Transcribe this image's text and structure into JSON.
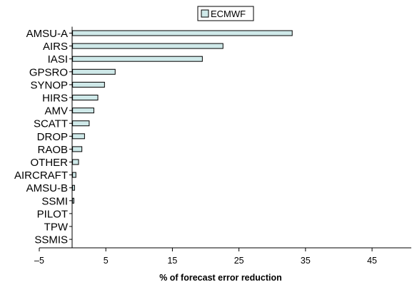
{
  "chart_data": {
    "type": "bar",
    "orientation": "horizontal",
    "categories": [
      "AMSU-A",
      "AIRS",
      "IASI",
      "GPSRO",
      "SYNOP",
      "HIRS",
      "AMV",
      "SCATT",
      "DROP",
      "RAOB",
      "OTHER",
      "AIRCRAFT",
      "AMSU-B",
      "SSMI",
      "PILOT",
      "TPW",
      "SSMIS"
    ],
    "series": [
      {
        "name": "ECMWF",
        "color": "#cfe9e9",
        "values": [
          33.0,
          22.6,
          19.5,
          6.4,
          4.8,
          3.8,
          3.2,
          2.5,
          1.8,
          1.4,
          0.9,
          0.5,
          0.3,
          0.2,
          0.0,
          0.0,
          0.0
        ]
      }
    ],
    "xlabel": "% of forecast error reduction",
    "ylabel": "",
    "xlim": [
      -5,
      51
    ],
    "xticks": [
      -5,
      5,
      15,
      25,
      35,
      45
    ],
    "xtick_labels": [
      "–5",
      "5",
      "15",
      "25",
      "35",
      "45"
    ],
    "grid": false,
    "legend": "top-center"
  }
}
